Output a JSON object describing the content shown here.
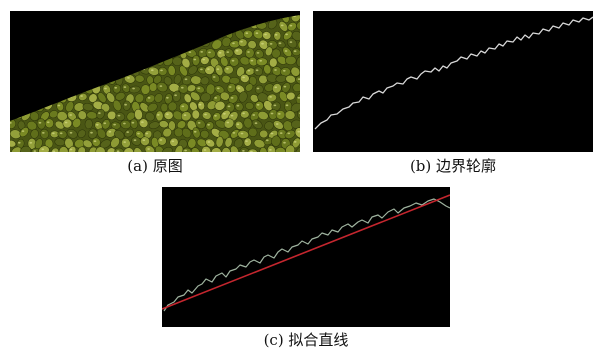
{
  "figure": {
    "panels": [
      {
        "id": "a",
        "caption": "(a) 原图",
        "content": "beans-photo"
      },
      {
        "id": "b",
        "caption": "(b) 边界轮廓",
        "content": "edge-contour"
      },
      {
        "id": "c",
        "caption": "(c) 拟合直线",
        "content": "fitted-line-over-contour"
      }
    ]
  },
  "colors": {
    "panel_background": "#000000",
    "contour": "#d8d8d8",
    "contour_c": "#9fb39f",
    "fit_line": "#c4262e",
    "bean_dark": "#3f4a10",
    "bean_mid": "#6f7d20",
    "bean_light": "#a3ad45"
  }
}
